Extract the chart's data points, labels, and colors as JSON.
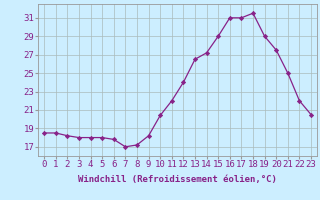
{
  "x": [
    0,
    1,
    2,
    3,
    4,
    5,
    6,
    7,
    8,
    9,
    10,
    11,
    12,
    13,
    14,
    15,
    16,
    17,
    18,
    19,
    20,
    21,
    22,
    23
  ],
  "y": [
    18.5,
    18.5,
    18.2,
    18.0,
    18.0,
    18.0,
    17.8,
    17.0,
    17.2,
    18.2,
    20.4,
    22.0,
    24.0,
    26.5,
    27.2,
    29.0,
    31.0,
    31.0,
    31.5,
    29.0,
    27.5,
    25.0,
    22.0,
    20.5
  ],
  "line_color": "#882288",
  "marker": "D",
  "markersize": 2.2,
  "linewidth": 0.9,
  "bg_color": "#cceeff",
  "grid_color": "#aabbbb",
  "xlabel": "Windchill (Refroidissement éolien,°C)",
  "xlabel_fontsize": 6.5,
  "xtick_labels": [
    "0",
    "1",
    "2",
    "3",
    "4",
    "5",
    "6",
    "7",
    "8",
    "9",
    "10",
    "11",
    "12",
    "13",
    "14",
    "15",
    "16",
    "17",
    "18",
    "19",
    "20",
    "21",
    "22",
    "23"
  ],
  "ytick_values": [
    17,
    19,
    21,
    23,
    25,
    27,
    29,
    31
  ],
  "ylim": [
    16.0,
    32.5
  ],
  "xlim": [
    -0.5,
    23.5
  ],
  "tick_fontsize": 6.5
}
